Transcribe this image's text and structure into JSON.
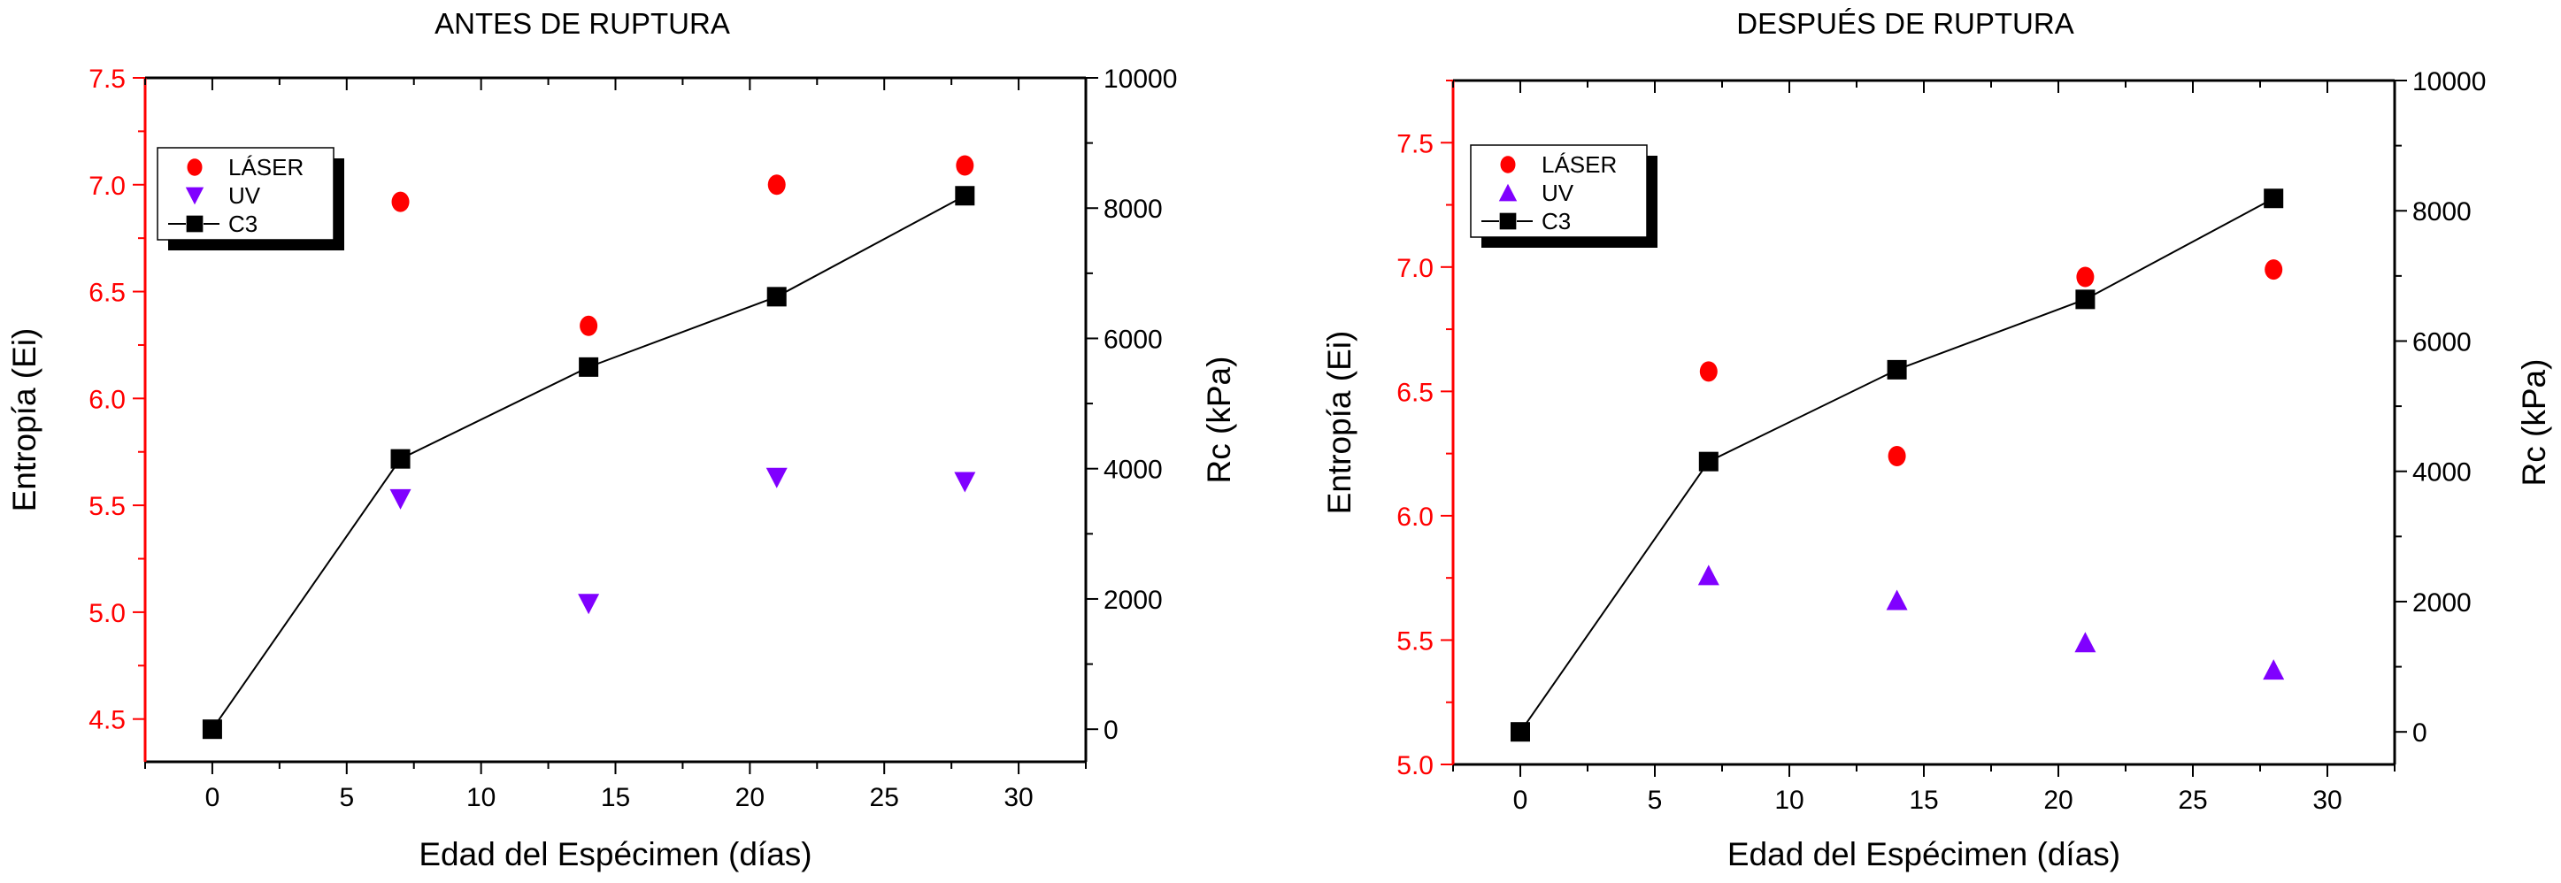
{
  "colors": {
    "laser": "#ff0000",
    "uv": "#8000ff",
    "c3": "#000000",
    "left_axis": "#ff0000",
    "right_axis": "#000000"
  },
  "chart_data": [
    {
      "type": "scatter",
      "title": "ANTES DE RUPTURA",
      "xlabel": "Edad del Espécimen (días)",
      "ylabel": "Entropía (Ei)",
      "y2label": "Rc (kPa)",
      "xlim": [
        -2.5,
        32.5
      ],
      "ylim": [
        4.3,
        7.5
      ],
      "y2lim": [
        -500,
        10000
      ],
      "xticks": [
        0,
        5,
        10,
        15,
        20,
        25,
        30
      ],
      "yticks": [
        "4.5",
        "5.0",
        "5.5",
        "6.0",
        "6.5",
        "7.0",
        "7.5"
      ],
      "y2ticks": [
        0,
        2000,
        4000,
        6000,
        8000,
        10000
      ],
      "grid": false,
      "legend_position": "top-left",
      "series": [
        {
          "name": "LÁSER",
          "axis": "left",
          "marker": "circle",
          "x": [
            7,
            14,
            21,
            28
          ],
          "y": [
            6.92,
            6.34,
            7.0,
            7.09
          ]
        },
        {
          "name": "UV",
          "axis": "left",
          "marker": "triangle-down",
          "x": [
            7,
            14,
            21,
            28
          ],
          "y": [
            5.53,
            5.04,
            5.63,
            5.61
          ]
        },
        {
          "name": "C3",
          "axis": "right",
          "marker": "square",
          "line": true,
          "x": [
            0,
            7,
            14,
            21,
            28
          ],
          "y": [
            0,
            4150,
            5560,
            6640,
            8190
          ]
        }
      ]
    },
    {
      "type": "scatter",
      "title": "DESPUÉS DE RUPTURA",
      "xlabel": "Edad del Espécimen (días)",
      "ylabel": "Entropía (Ei)",
      "y2label": "Rc  (kPa)",
      "xlim": [
        -2.5,
        32.5
      ],
      "ylim": [
        5.0,
        7.75
      ],
      "y2lim": [
        -500,
        10000
      ],
      "xticks": [
        0,
        5,
        10,
        15,
        20,
        25,
        30
      ],
      "yticks": [
        "5.0",
        "5.5",
        "6.0",
        "6.5",
        "7.0",
        "7.5"
      ],
      "y2ticks": [
        0,
        2000,
        4000,
        6000,
        8000,
        10000
      ],
      "grid": false,
      "legend_position": "top-left",
      "series": [
        {
          "name": "LÁSER",
          "axis": "left",
          "marker": "circle",
          "x": [
            7,
            14,
            21,
            28
          ],
          "y": [
            6.58,
            6.24,
            6.96,
            6.99
          ]
        },
        {
          "name": "UV",
          "axis": "left",
          "marker": "triangle-up",
          "x": [
            7,
            14,
            21,
            28
          ],
          "y": [
            5.76,
            5.66,
            5.49,
            5.38
          ]
        },
        {
          "name": "C3",
          "axis": "right",
          "marker": "square",
          "line": true,
          "x": [
            0,
            7,
            14,
            21,
            28
          ],
          "y": [
            0,
            4150,
            5560,
            6640,
            8190
          ]
        }
      ]
    }
  ]
}
